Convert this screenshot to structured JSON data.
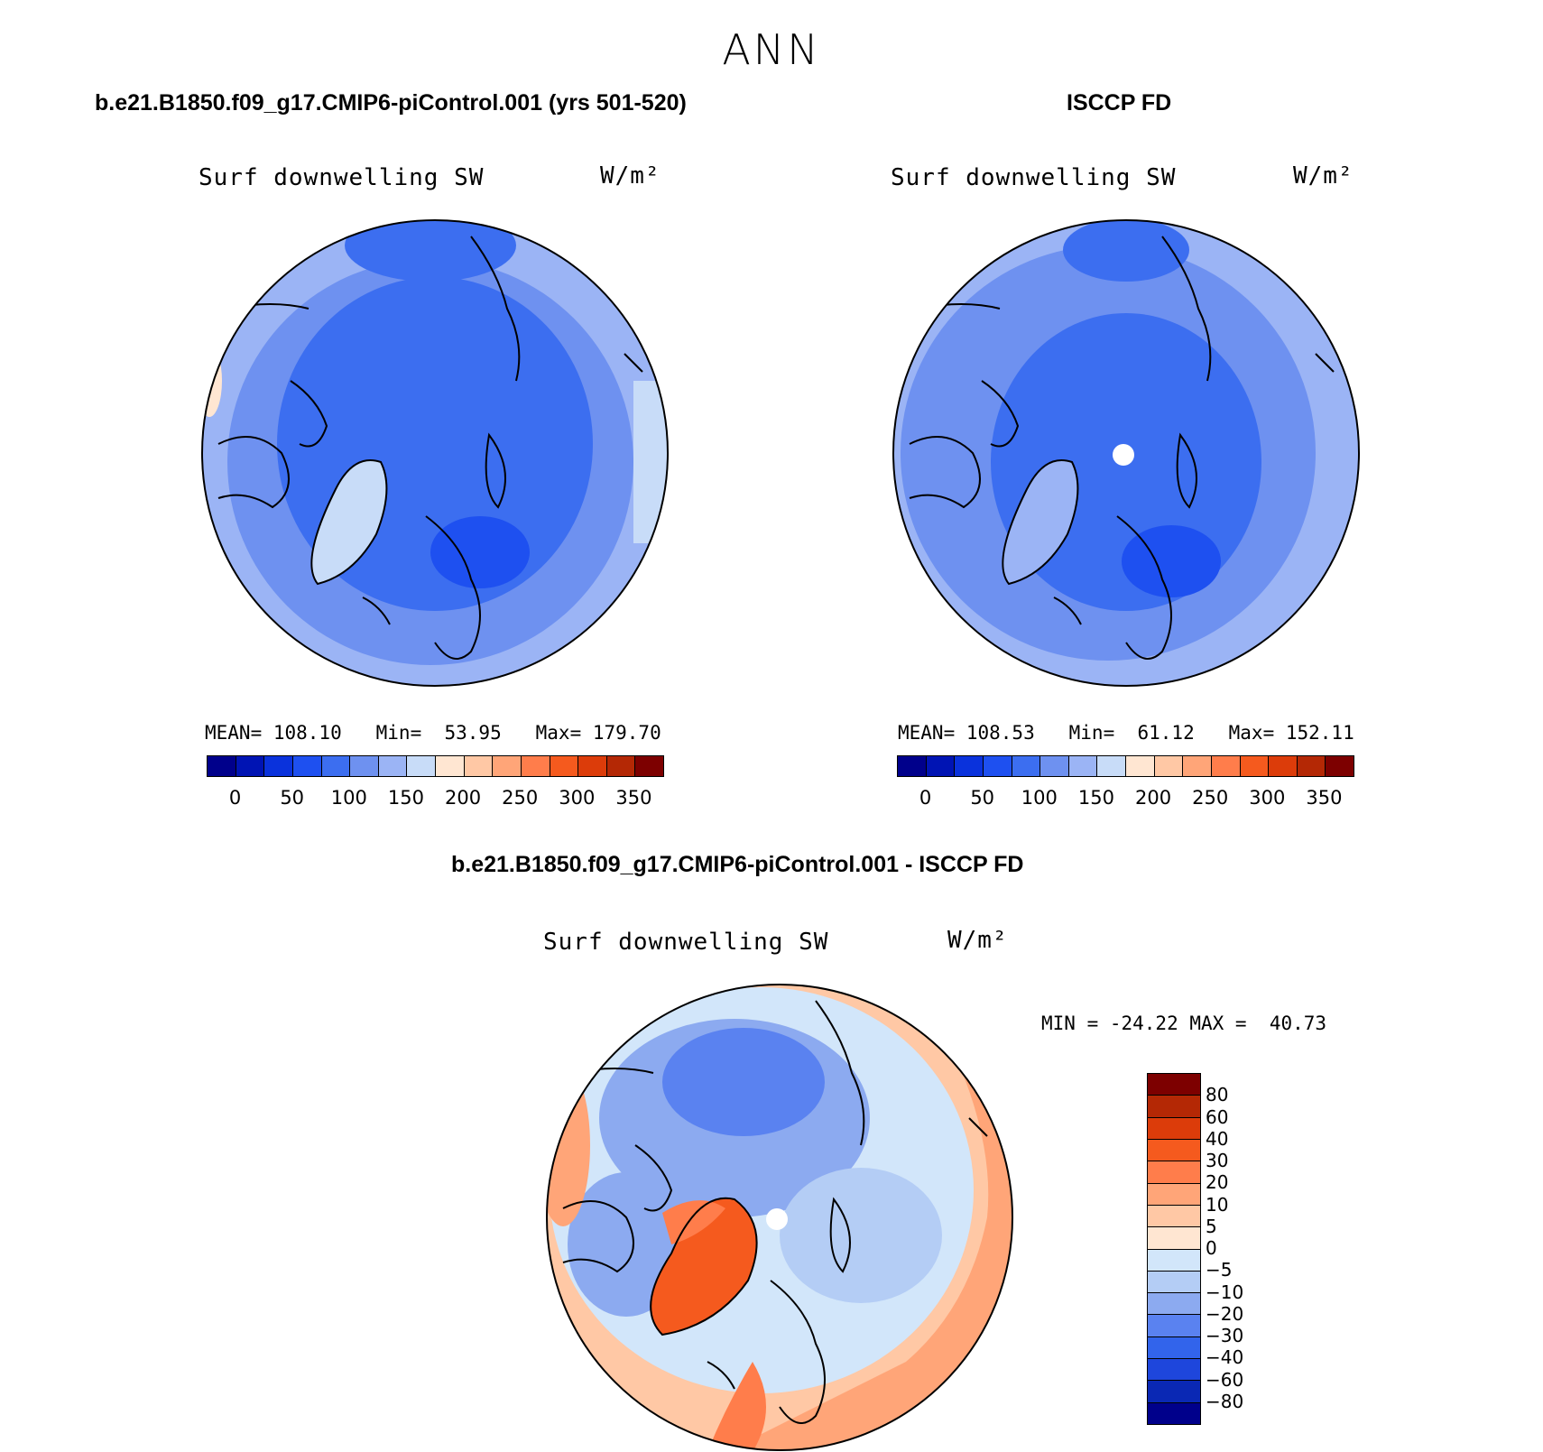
{
  "title": "ANN",
  "colors": {
    "abs_scale": [
      "#00008b",
      "#0014b4",
      "#0a32dc",
      "#1e50f0",
      "#3c6ef0",
      "#6e91f0",
      "#9bb4f5",
      "#c8dcf8",
      "#ffe6d2",
      "#ffc8a5",
      "#ffa578",
      "#ff7d4b",
      "#f55a1e",
      "#dc3c0a",
      "#b42805",
      "#7d0000"
    ],
    "diff_scale": [
      "#7d0000",
      "#b42805",
      "#dc3c0a",
      "#f55a1e",
      "#ff7d4b",
      "#ffa578",
      "#ffc8a5",
      "#ffe6d2",
      "#d2e6fa",
      "#b4cdf5",
      "#8caaf0",
      "#5a82f0",
      "#3264eb",
      "#1e46dc",
      "#0a28b4",
      "#00008b"
    ]
  },
  "panels": {
    "model": {
      "title": "b.e21.B1850.f09_g17.CMIP6-piControl.001 (yrs 501-520)",
      "variable": "Surf downwelling SW",
      "units": "W/m²",
      "stats": "MEAN= 108.10   Min=  53.95   Max= 179.70",
      "fill_color": "#3c6ef0"
    },
    "obs": {
      "title": "ISCCP FD",
      "variable": "Surf downwelling SW",
      "units": "W/m²",
      "stats": "MEAN= 108.53   Min=  61.12   Max= 152.11",
      "fill_color": "#5a82f0"
    },
    "diff": {
      "title": "b.e21.B1850.f09_g17.CMIP6-piControl.001 - ISCCP FD",
      "variable": "Surf downwelling SW",
      "units": "W/m²",
      "stats": "MIN = -24.22 MAX =  40.73",
      "fill_color": "#b4cdf5"
    }
  },
  "abs_colorbar_labels": [
    "0",
    "50",
    "100",
    "150",
    "200",
    "250",
    "300",
    "350"
  ],
  "diff_colorbar_labels": [
    "80",
    "60",
    "40",
    "30",
    "20",
    "10",
    "5",
    "0",
    "-5",
    "-10",
    "-20",
    "-30",
    "-40",
    "-60",
    "-80"
  ]
}
